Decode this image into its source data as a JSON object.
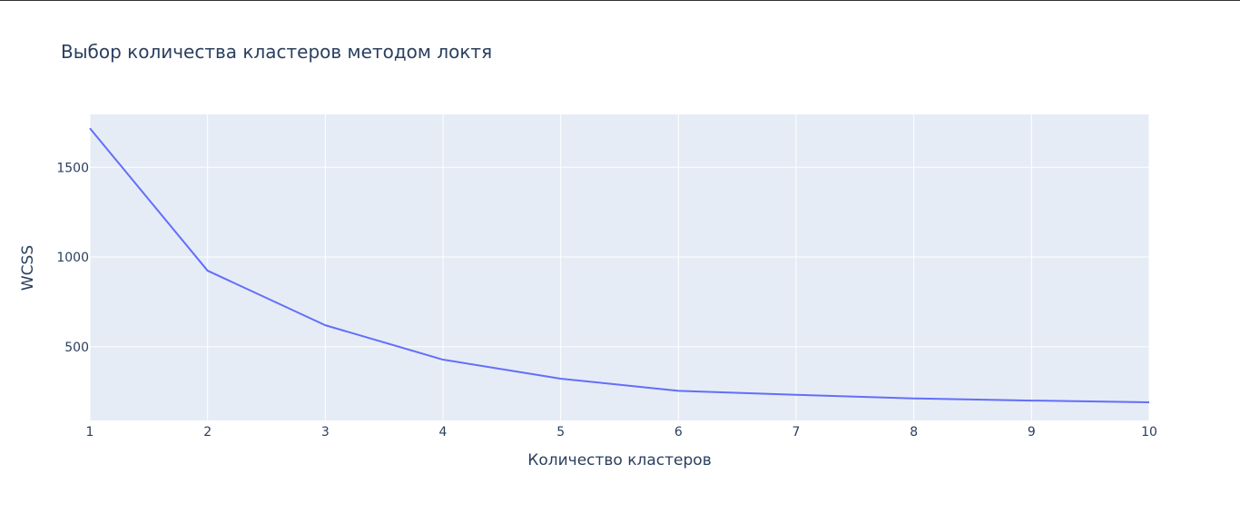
{
  "chart_data": {
    "type": "line",
    "title": "Выбор количества кластеров методом локтя",
    "xlabel": "Количество кластеров",
    "ylabel": "WCSS",
    "x": [
      1,
      2,
      3,
      4,
      5,
      6,
      7,
      8,
      9,
      10
    ],
    "series": [
      {
        "values": [
          1718,
          924,
          620,
          428,
          322,
          254,
          232,
          212,
          200,
          190
        ],
        "color": "#636efa"
      }
    ],
    "xlim": [
      1,
      10
    ],
    "ylim": [
      89,
      1795
    ],
    "xticks": [
      1,
      2,
      3,
      4,
      5,
      6,
      7,
      8,
      9,
      10
    ],
    "yticks": [
      500,
      1000,
      1500
    ],
    "grid": true,
    "legend": "none",
    "colors": {
      "plot_bg": "#e5ecf6",
      "grid": "#ffffff",
      "text": "#2a3f5f",
      "line": "#636efa"
    }
  }
}
